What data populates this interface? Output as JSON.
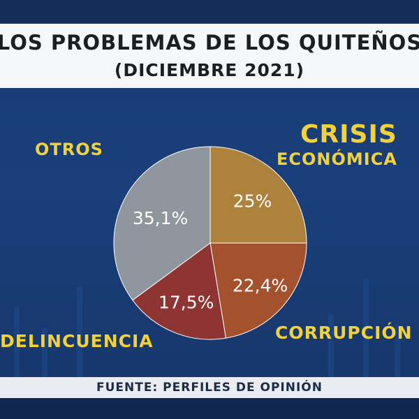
{
  "title": {
    "line1": "LOS PROBLEMAS DE LOS QUITEÑOS",
    "line2": "(DICIEMBRE 2021)"
  },
  "labels": {
    "otros": "OTROS",
    "crisis": "CRISIS",
    "economica": "ECONÓMICA",
    "corrupcion": "CORRUPCIÓN",
    "delincuencia": "DELINCUENCIA"
  },
  "source": "FUENTE: PERFILES DE OPINIÓN",
  "colors": {
    "crisis": "#ad823d",
    "corrupcion": "#a4512d",
    "delincuencia": "#8e3533",
    "otros": "#8f969e",
    "label": "#f2d23a"
  },
  "chart_data": {
    "type": "pie",
    "title": "LOS PROBLEMAS DE LOS QUITEÑOS (DICIEMBRE 2021)",
    "slices": [
      {
        "name": "CRISIS ECONÓMICA",
        "value": 25.0,
        "label": "25%",
        "color": "#ad823d"
      },
      {
        "name": "CORRUPCIÓN",
        "value": 22.4,
        "label": "22,4%",
        "color": "#a4512d"
      },
      {
        "name": "DELINCUENCIA",
        "value": 17.5,
        "label": "17,5%",
        "color": "#8e3533"
      },
      {
        "name": "OTROS",
        "value": 35.1,
        "label": "35,1%",
        "color": "#8f969e"
      }
    ]
  }
}
